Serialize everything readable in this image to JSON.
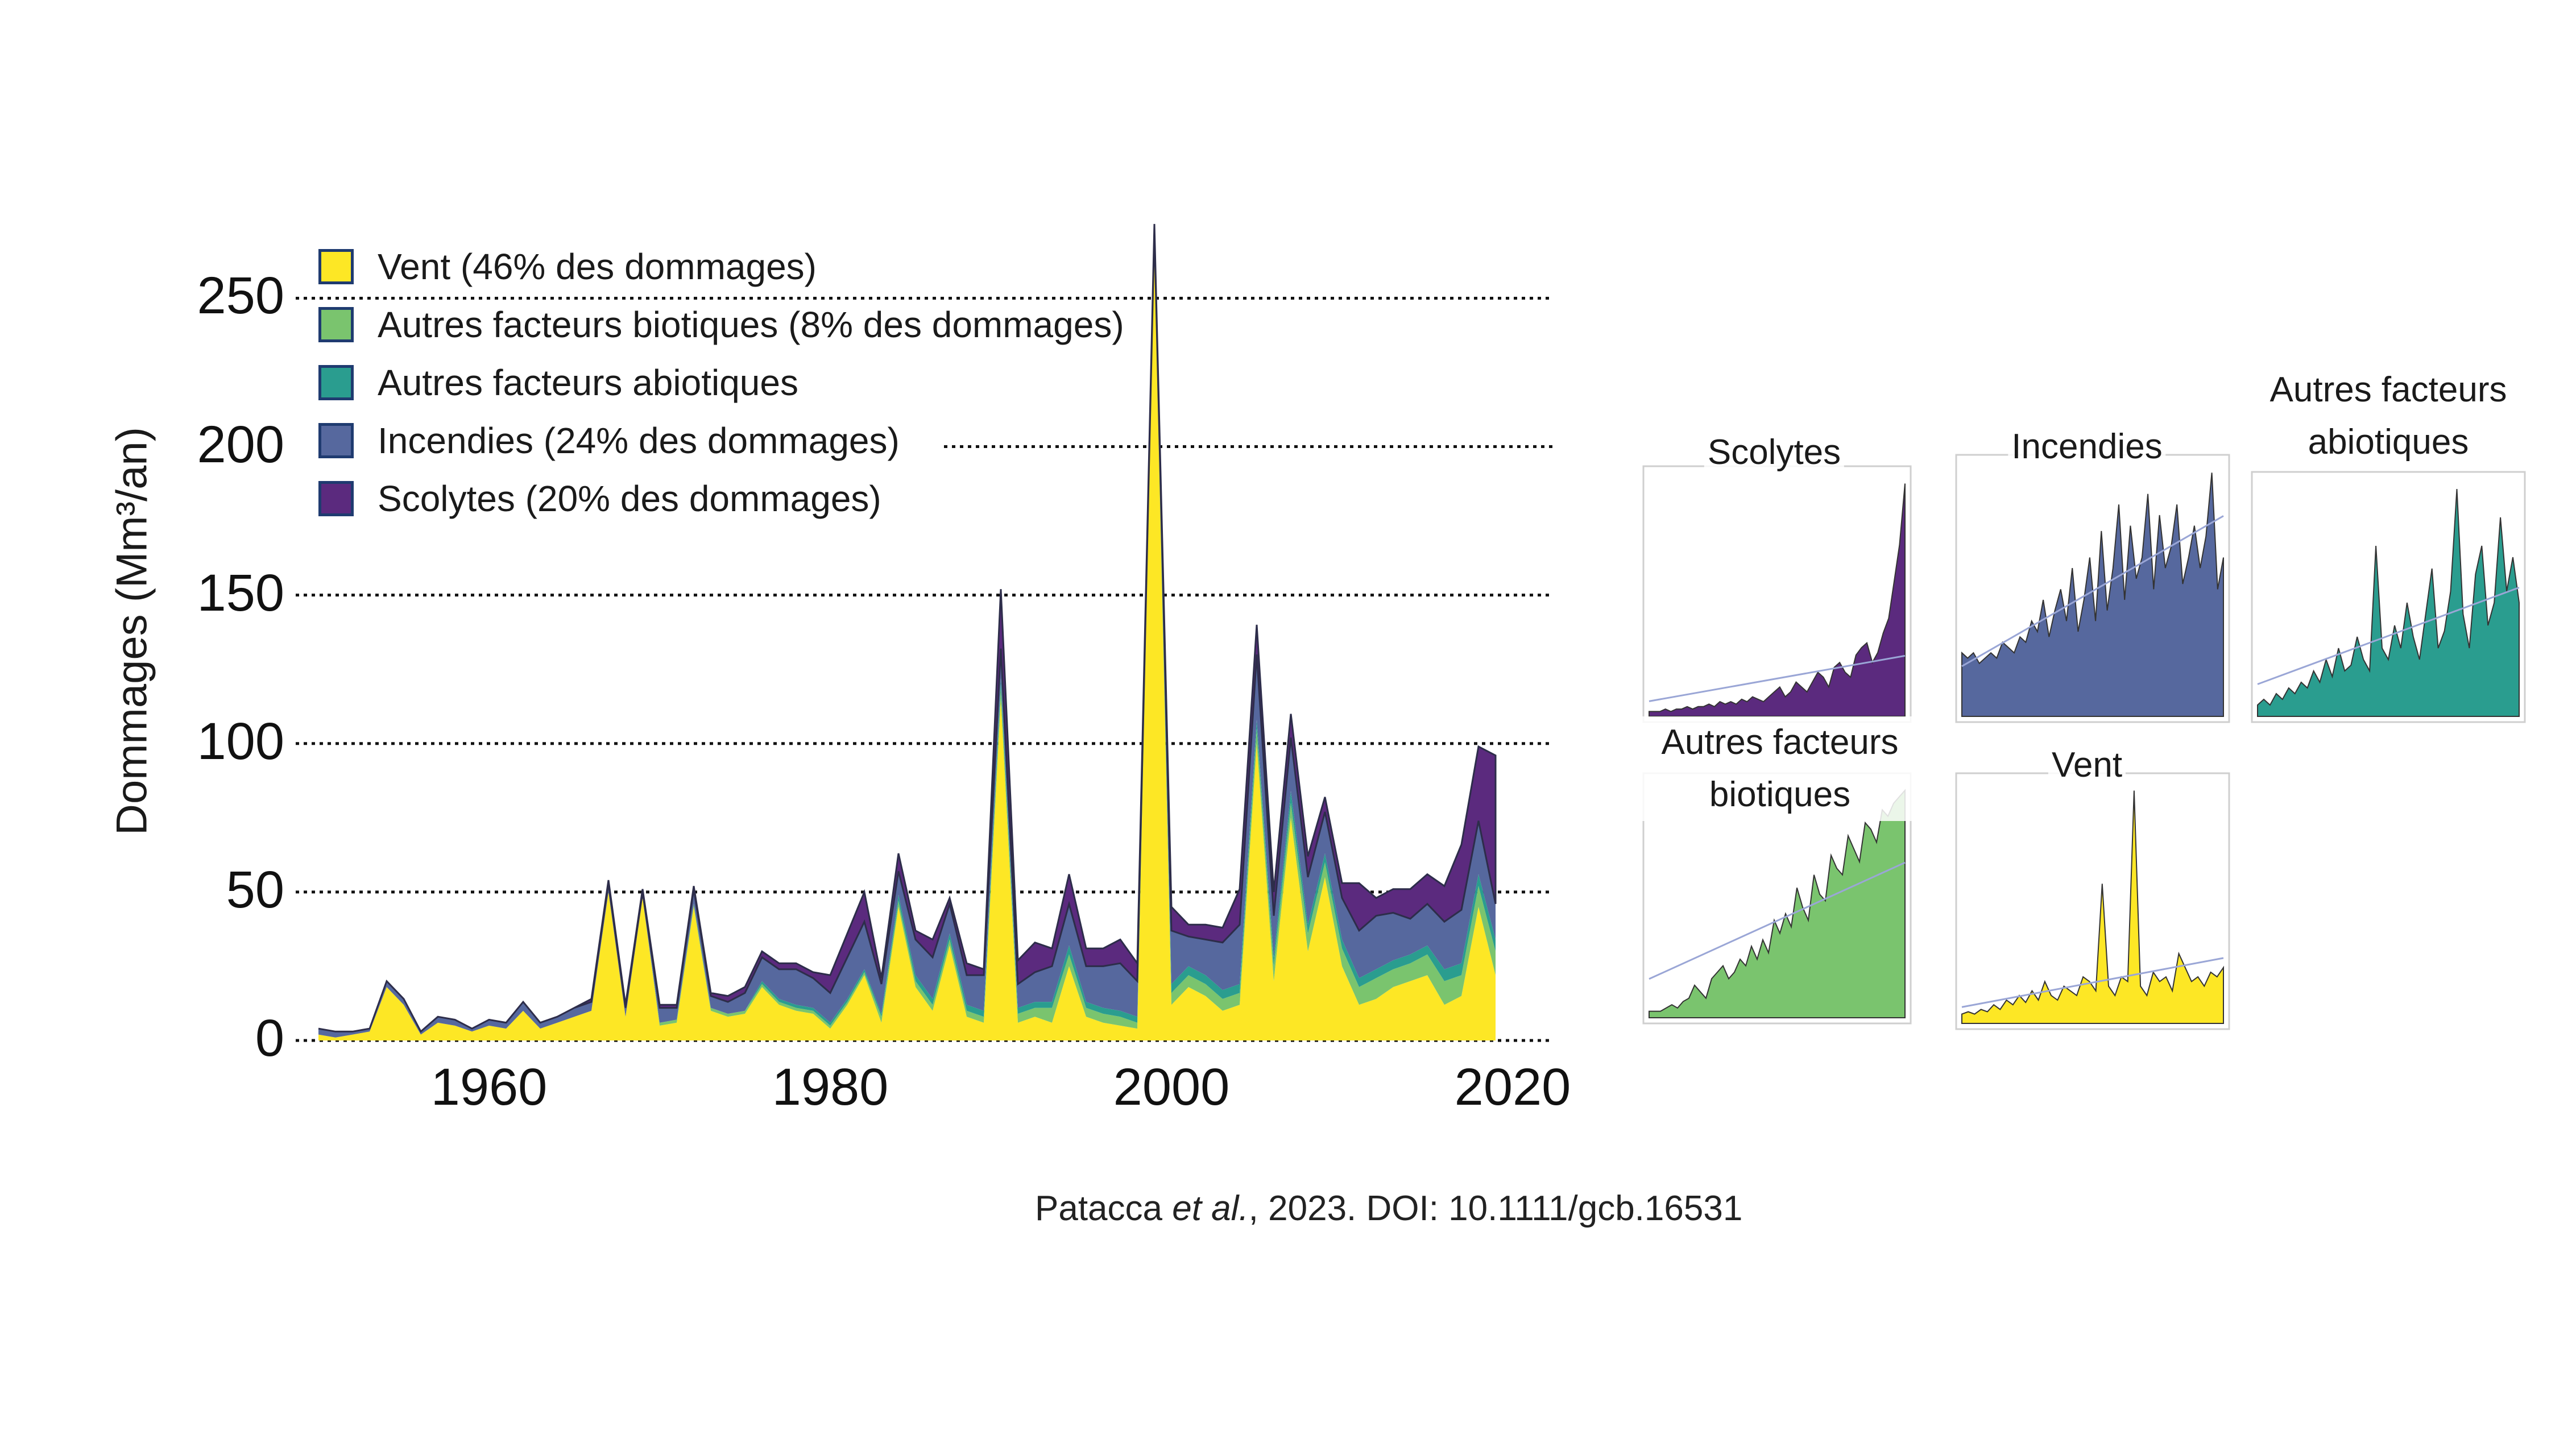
{
  "chart_data": [
    {
      "type": "area",
      "stacked": true,
      "title": "",
      "xlabel": "",
      "ylabel": "Dommages (Mm³/an)",
      "xlim": [
        1949,
        2021
      ],
      "ylim": [
        0,
        270
      ],
      "x_ticks": [
        "1960",
        "1980",
        "2000",
        "2020"
      ],
      "y_ticks": [
        "0",
        "50",
        "100",
        "150",
        "200",
        "250"
      ],
      "gridlines_y": [
        0,
        50,
        100,
        150,
        200,
        250
      ],
      "legend_position": "top-left",
      "x": [
        1950,
        1951,
        1952,
        1953,
        1954,
        1955,
        1956,
        1957,
        1958,
        1959,
        1960,
        1961,
        1962,
        1963,
        1964,
        1965,
        1966,
        1967,
        1968,
        1969,
        1970,
        1971,
        1972,
        1973,
        1974,
        1975,
        1976,
        1977,
        1978,
        1979,
        1980,
        1981,
        1982,
        1983,
        1984,
        1985,
        1986,
        1987,
        1988,
        1989,
        1990,
        1991,
        1992,
        1993,
        1994,
        1995,
        1996,
        1997,
        1998,
        1999,
        2000,
        2001,
        2002,
        2003,
        2004,
        2005,
        2006,
        2007,
        2008,
        2009,
        2010,
        2011,
        2012,
        2013,
        2014,
        2015,
        2016,
        2017,
        2018,
        2019
      ],
      "series": [
        {
          "name": "Vent (46% des dommages)",
          "color": "#fde725",
          "values": [
            2,
            1,
            2,
            3,
            18,
            12,
            2,
            6,
            5,
            3,
            5,
            4,
            10,
            4,
            6,
            8,
            10,
            50,
            8,
            48,
            5,
            6,
            45,
            10,
            8,
            9,
            18,
            12,
            10,
            9,
            4,
            12,
            22,
            6,
            45,
            18,
            10,
            32,
            8,
            6,
            115,
            6,
            8,
            6,
            25,
            8,
            6,
            5,
            4,
            265,
            12,
            18,
            15,
            10,
            12,
            100,
            20,
            75,
            30,
            55,
            25,
            12,
            14,
            18,
            20,
            22,
            12,
            15,
            45,
            22
          ]
        },
        {
          "name": "Autres facteurs biotiques (8% des dommages)",
          "color": "#7ac46e",
          "values": [
            0,
            0,
            0,
            0,
            0,
            0,
            0,
            0,
            0,
            0,
            0,
            0,
            0,
            0,
            0,
            0,
            0,
            0,
            0,
            0,
            1,
            1,
            1,
            1,
            1,
            1,
            1,
            1,
            1,
            1,
            1,
            1,
            1,
            2,
            2,
            2,
            2,
            2,
            2,
            2,
            4,
            3,
            3,
            5,
            4,
            3,
            3,
            3,
            2,
            2,
            4,
            4,
            4,
            4,
            4,
            5,
            5,
            5,
            6,
            5,
            6,
            6,
            7,
            6,
            6,
            7,
            8,
            7,
            7,
            8
          ]
        },
        {
          "name": "Autres facteurs abiotiques",
          "color": "#2a9d8f",
          "values": [
            0,
            0,
            0,
            0,
            0,
            0,
            0,
            0,
            0,
            0,
            0,
            0,
            0,
            0,
            0,
            0,
            0,
            0,
            0,
            0,
            0,
            0,
            0,
            0,
            0,
            0,
            1,
            1,
            1,
            1,
            1,
            1,
            1,
            1,
            2,
            2,
            2,
            2,
            2,
            2,
            3,
            2,
            2,
            2,
            3,
            2,
            2,
            2,
            2,
            2,
            3,
            3,
            3,
            3,
            3,
            3,
            3,
            4,
            3,
            3,
            3,
            3,
            3,
            3,
            3,
            3,
            4,
            4,
            4,
            4
          ]
        },
        {
          "name": "Incendies (24% des dommages)",
          "color": "#56689e",
          "values": [
            2,
            2,
            1,
            1,
            2,
            2,
            1,
            2,
            2,
            1,
            2,
            2,
            3,
            2,
            2,
            3,
            3,
            3,
            3,
            2,
            5,
            4,
            5,
            4,
            4,
            6,
            8,
            10,
            12,
            10,
            10,
            14,
            16,
            10,
            8,
            12,
            14,
            10,
            10,
            12,
            10,
            8,
            10,
            12,
            14,
            12,
            14,
            16,
            12,
            4,
            18,
            10,
            12,
            16,
            20,
            22,
            14,
            18,
            16,
            14,
            14,
            16,
            18,
            16,
            12,
            14,
            16,
            18,
            18,
            12
          ]
        },
        {
          "name": "Scolytes (20% des dommages)",
          "color": "#5b2a7e",
          "values": [
            0,
            0,
            0,
            0,
            0,
            0,
            0,
            0,
            0,
            0,
            0,
            0,
            0,
            0,
            0,
            0,
            1,
            1,
            1,
            1,
            1,
            1,
            1,
            1,
            2,
            2,
            2,
            2,
            2,
            2,
            6,
            8,
            10,
            2,
            6,
            3,
            6,
            2,
            4,
            2,
            20,
            8,
            10,
            6,
            10,
            6,
            6,
            8,
            6,
            2,
            8,
            4,
            5,
            5,
            12,
            10,
            8,
            8,
            7,
            5,
            5,
            16,
            6,
            8,
            10,
            10,
            12,
            22,
            25,
            50
          ]
        }
      ]
    },
    {
      "type": "area",
      "title": "Scolytes",
      "color": "#5b2a7e",
      "values": [
        2,
        2,
        2,
        3,
        2,
        3,
        3,
        4,
        3,
        4,
        4,
        5,
        4,
        6,
        5,
        6,
        5,
        7,
        6,
        8,
        7,
        6,
        8,
        10,
        12,
        8,
        10,
        14,
        12,
        10,
        14,
        18,
        16,
        12,
        20,
        22,
        18,
        16,
        25,
        28,
        30,
        22,
        26,
        34,
        40,
        55,
        70,
        95
      ]
    },
    {
      "type": "area",
      "title": "Incendies",
      "color": "#56689e",
      "values": [
        12,
        11,
        12,
        10,
        11,
        12,
        11,
        14,
        13,
        12,
        15,
        14,
        18,
        16,
        22,
        15,
        20,
        24,
        18,
        28,
        16,
        22,
        30,
        18,
        35,
        20,
        28,
        40,
        22,
        36,
        26,
        30,
        42,
        24,
        38,
        28,
        32,
        40,
        25,
        30,
        36,
        28,
        34,
        46,
        24,
        30
      ]
    },
    {
      "type": "area",
      "title": "Autres facteurs abiotiques",
      "color": "#2a9d8f",
      "values": [
        2,
        3,
        2,
        4,
        3,
        5,
        4,
        6,
        5,
        8,
        6,
        10,
        7,
        12,
        8,
        9,
        14,
        10,
        8,
        30,
        12,
        10,
        16,
        12,
        20,
        14,
        10,
        18,
        26,
        12,
        15,
        22,
        40,
        18,
        12,
        25,
        30,
        16,
        20,
        35,
        22,
        28,
        20
      ]
    },
    {
      "type": "area",
      "title": "Autres facteurs biotiques",
      "color": "#7ac46e",
      "values": [
        2,
        2,
        2,
        3,
        4,
        3,
        5,
        6,
        10,
        8,
        6,
        12,
        14,
        16,
        12,
        14,
        18,
        16,
        22,
        18,
        24,
        20,
        30,
        26,
        32,
        28,
        40,
        34,
        30,
        44,
        38,
        36,
        50,
        46,
        44,
        56,
        52,
        48,
        60,
        58,
        54,
        64,
        62,
        66,
        68,
        70
      ]
    },
    {
      "type": "area",
      "title": "Vent",
      "color": "#fde725",
      "values": [
        4,
        5,
        4,
        6,
        5,
        8,
        6,
        10,
        8,
        12,
        9,
        14,
        10,
        18,
        12,
        10,
        16,
        14,
        12,
        20,
        18,
        14,
        60,
        16,
        12,
        20,
        18,
        100,
        16,
        12,
        22,
        18,
        20,
        14,
        30,
        24,
        18,
        20,
        16,
        22,
        20,
        24
      ]
    }
  ],
  "citation": {
    "prefix": "Patacca ",
    "etal": "et al.",
    "suffix": ", 2023. DOI: 10.1111/gcb.16531"
  }
}
